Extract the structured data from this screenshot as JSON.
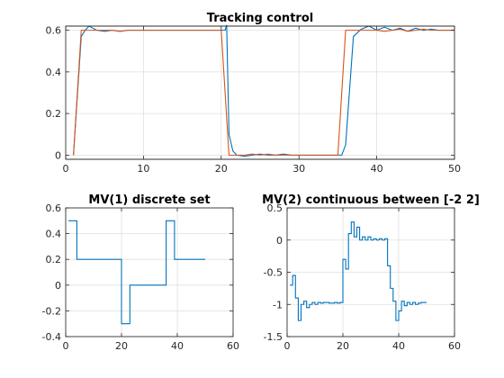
{
  "chart_data": [
    {
      "type": "line",
      "title": "Tracking control",
      "xlabel": "",
      "ylabel": "",
      "xlim": [
        0,
        50
      ],
      "ylim": [
        -0.02,
        0.62
      ],
      "xticks": [
        0,
        10,
        20,
        30,
        40,
        50
      ],
      "yticks": [
        0,
        0.2,
        0.4,
        0.6
      ],
      "grid": true,
      "step": false,
      "colors": [
        "#0072BD",
        "#D95319"
      ],
      "series": [
        {
          "values": [
            [
              1,
              0
            ],
            [
              2,
              0.57
            ],
            [
              2.5,
              0.6
            ],
            [
              3,
              0.62
            ],
            [
              4,
              0.6
            ],
            [
              5,
              0.595
            ],
            [
              6,
              0.6
            ],
            [
              7,
              0.595
            ],
            [
              8,
              0.6
            ],
            [
              9,
              0.6
            ],
            [
              10,
              0.6
            ],
            [
              12,
              0.6
            ],
            [
              14,
              0.6
            ],
            [
              16,
              0.6
            ],
            [
              18,
              0.6
            ],
            [
              19.5,
              0.6
            ],
            [
              20.5,
              0.6
            ],
            [
              20.7,
              0.625
            ],
            [
              21,
              0.1
            ],
            [
              21.5,
              0.02
            ],
            [
              22,
              0
            ],
            [
              23,
              -0.005
            ],
            [
              24,
              0
            ],
            [
              25,
              0.005
            ],
            [
              26,
              0
            ],
            [
              27,
              0
            ],
            [
              28,
              0.005
            ],
            [
              29,
              0
            ],
            [
              30,
              0
            ],
            [
              32,
              0
            ],
            [
              34,
              0
            ],
            [
              35,
              0
            ],
            [
              35.5,
              0
            ],
            [
              36,
              0.05
            ],
            [
              37,
              0.57
            ],
            [
              38,
              0.605
            ],
            [
              39,
              0.62
            ],
            [
              40,
              0.6
            ],
            [
              41,
              0.615
            ],
            [
              42,
              0.6
            ],
            [
              43,
              0.61
            ],
            [
              44,
              0.595
            ],
            [
              45,
              0.61
            ],
            [
              46,
              0.6
            ],
            [
              47,
              0.605
            ],
            [
              48,
              0.6
            ],
            [
              49,
              0.6
            ],
            [
              50,
              0.6
            ]
          ]
        },
        {
          "values": [
            [
              1,
              0
            ],
            [
              2,
              0.6
            ],
            [
              3,
              0.6
            ],
            [
              4,
              0.6
            ],
            [
              5,
              0.6
            ],
            [
              6,
              0.6
            ],
            [
              7,
              0.595
            ],
            [
              8,
              0.6
            ],
            [
              10,
              0.6
            ],
            [
              12,
              0.6
            ],
            [
              14,
              0.6
            ],
            [
              16,
              0.6
            ],
            [
              18,
              0.6
            ],
            [
              19,
              0.6
            ],
            [
              20,
              0.6
            ],
            [
              21,
              0
            ],
            [
              22,
              0
            ],
            [
              23,
              0
            ],
            [
              24,
              0.005
            ],
            [
              25,
              0
            ],
            [
              26,
              0.005
            ],
            [
              27,
              0
            ],
            [
              28,
              0
            ],
            [
              29,
              0
            ],
            [
              30,
              0
            ],
            [
              32,
              0
            ],
            [
              34,
              0
            ],
            [
              35,
              0
            ],
            [
              36,
              0.6
            ],
            [
              37,
              0.6
            ],
            [
              38,
              0.6
            ],
            [
              39,
              0.6
            ],
            [
              40,
              0.6
            ],
            [
              41,
              0.595
            ],
            [
              42,
              0.6
            ],
            [
              43,
              0.605
            ],
            [
              44,
              0.595
            ],
            [
              45,
              0.6
            ],
            [
              46,
              0.605
            ],
            [
              47,
              0.6
            ],
            [
              48,
              0.6
            ],
            [
              49,
              0.6
            ],
            [
              50,
              0.6
            ]
          ]
        }
      ]
    },
    {
      "type": "line",
      "title": "MV(1) discrete set",
      "xlabel": "",
      "ylabel": "",
      "xlim": [
        0,
        60
      ],
      "ylim": [
        -0.4,
        0.6
      ],
      "xticks": [
        0,
        20,
        40,
        60
      ],
      "yticks": [
        -0.4,
        -0.2,
        0,
        0.2,
        0.4,
        0.6
      ],
      "grid": true,
      "step": true,
      "colors": [
        "#0072BD"
      ],
      "series": [
        {
          "values": [
            [
              1,
              0.5
            ],
            [
              4,
              0.2
            ],
            [
              20,
              -0.3
            ],
            [
              23,
              0
            ],
            [
              36,
              0.5
            ],
            [
              39,
              0.2
            ],
            [
              50,
              0.2
            ]
          ]
        }
      ]
    },
    {
      "type": "line",
      "title": "MV(2) continuous between [-2 2]",
      "xlabel": "",
      "ylabel": "",
      "xlim": [
        0,
        60
      ],
      "ylim": [
        -1.5,
        0.5
      ],
      "xticks": [
        0,
        20,
        40,
        60
      ],
      "yticks": [
        -1.5,
        -1,
        -0.5,
        0,
        0.5
      ],
      "grid": true,
      "step": true,
      "colors": [
        "#0072BD"
      ],
      "series": [
        {
          "values": [
            [
              1,
              -0.7
            ],
            [
              2,
              -0.55
            ],
            [
              3,
              -0.9
            ],
            [
              4,
              -1.25
            ],
            [
              5,
              -1.0
            ],
            [
              6,
              -0.95
            ],
            [
              7,
              -1.05
            ],
            [
              8,
              -1.0
            ],
            [
              9,
              -0.97
            ],
            [
              10,
              -1.0
            ],
            [
              11,
              -0.97
            ],
            [
              12,
              -0.98
            ],
            [
              13,
              -0.97
            ],
            [
              14,
              -0.97
            ],
            [
              15,
              -0.98
            ],
            [
              16,
              -0.98
            ],
            [
              17,
              -0.97
            ],
            [
              18,
              -0.98
            ],
            [
              19,
              -0.97
            ],
            [
              20,
              -0.3
            ],
            [
              21,
              -0.45
            ],
            [
              22,
              0.1
            ],
            [
              23,
              0.28
            ],
            [
              24,
              0.05
            ],
            [
              25,
              0.2
            ],
            [
              26,
              0.0
            ],
            [
              27,
              0.05
            ],
            [
              28,
              0.0
            ],
            [
              29,
              0.05
            ],
            [
              30,
              0.0
            ],
            [
              31,
              0.02
            ],
            [
              32,
              0.0
            ],
            [
              33,
              0.02
            ],
            [
              34,
              0.0
            ],
            [
              35,
              0.02
            ],
            [
              36,
              -0.4
            ],
            [
              37,
              -0.75
            ],
            [
              38,
              -0.95
            ],
            [
              39,
              -1.25
            ],
            [
              40,
              -1.1
            ],
            [
              41,
              -0.95
            ],
            [
              42,
              -1.02
            ],
            [
              43,
              -0.97
            ],
            [
              44,
              -1.0
            ],
            [
              45,
              -0.97
            ],
            [
              46,
              -1.0
            ],
            [
              47,
              -0.98
            ],
            [
              48,
              -0.97
            ],
            [
              49,
              -0.97
            ],
            [
              50,
              -0.97
            ]
          ]
        }
      ]
    }
  ]
}
